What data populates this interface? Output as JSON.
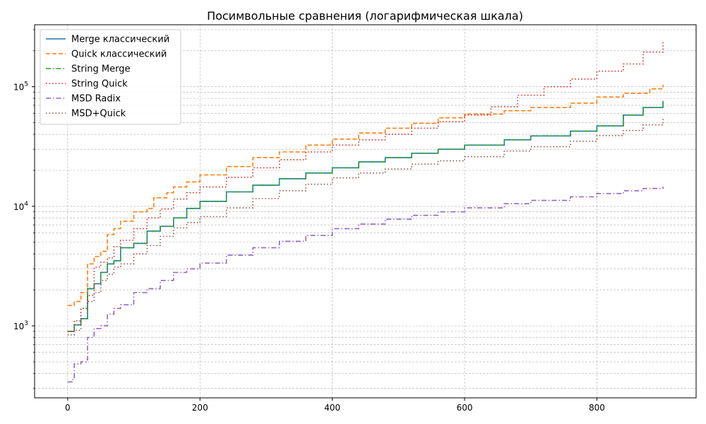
{
  "chart_data": {
    "type": "line",
    "title": "Посимвольные сравнения (логарифмическая шкала)",
    "xlabel": "",
    "ylabel": "",
    "yscale": "log",
    "xlim": [
      -50,
      950
    ],
    "ylim": [
      250,
      330000
    ],
    "xticks": [
      0,
      200,
      400,
      600,
      800
    ],
    "xtick_labels": [
      "0",
      "200",
      "400",
      "600",
      "800"
    ],
    "yticks": [
      1000,
      10000,
      100000
    ],
    "ytick_labels": [
      {
        "base": "10",
        "exp": "3"
      },
      {
        "base": "10",
        "exp": "4"
      },
      {
        "base": "10",
        "exp": "5"
      }
    ],
    "grid": true,
    "legend_position": "upper-left",
    "series": [
      {
        "name": "Merge классический",
        "color": "#1f77b4",
        "dash": "solid",
        "x": [
          0,
          10,
          20,
          30,
          40,
          50,
          60,
          70,
          80,
          100,
          120,
          140,
          160,
          180,
          200,
          240,
          280,
          320,
          360,
          400,
          440,
          480,
          520,
          560,
          600,
          660,
          700,
          760,
          800,
          840,
          870,
          900
        ],
        "y": [
          900,
          1020,
          1150,
          2050,
          2250,
          2800,
          3300,
          3500,
          4500,
          4900,
          6200,
          6800,
          8000,
          9600,
          11000,
          13200,
          15000,
          17000,
          19000,
          21000,
          23500,
          25500,
          27800,
          30000,
          32500,
          36000,
          38800,
          42500,
          47000,
          58000,
          67000,
          76000
        ]
      },
      {
        "name": "Quick классический",
        "color": "#ff7f0e",
        "dash": "dashed",
        "x": [
          0,
          10,
          20,
          30,
          40,
          50,
          60,
          70,
          80,
          100,
          120,
          130,
          150,
          160,
          180,
          200,
          240,
          280,
          320,
          360,
          400,
          440,
          480,
          520,
          560,
          600,
          660,
          700,
          760,
          800,
          840,
          880,
          900
        ],
        "y": [
          1480,
          1600,
          1900,
          3300,
          3800,
          4200,
          5800,
          6500,
          7500,
          9000,
          9600,
          11800,
          13000,
          14500,
          16000,
          18300,
          21500,
          25500,
          28500,
          32500,
          36500,
          41000,
          45000,
          49500,
          55000,
          59000,
          63000,
          67000,
          73000,
          82000,
          88000,
          96000,
          104000
        ]
      },
      {
        "name": "String Merge",
        "color": "#2ca02c",
        "dash": "dashdot",
        "x": [
          0,
          10,
          20,
          30,
          40,
          50,
          60,
          70,
          80,
          100,
          120,
          140,
          160,
          180,
          200,
          240,
          280,
          320,
          360,
          400,
          440,
          480,
          520,
          560,
          600,
          660,
          700,
          760,
          800,
          840,
          870,
          900
        ],
        "y": [
          900,
          1020,
          1150,
          2050,
          2250,
          2800,
          3300,
          3500,
          4500,
          4900,
          6200,
          6800,
          8000,
          9600,
          11000,
          13200,
          15000,
          17000,
          19000,
          21000,
          23500,
          25500,
          27800,
          30000,
          32500,
          36000,
          38800,
          42500,
          47000,
          58000,
          67000,
          76000
        ]
      },
      {
        "name": "String Quick",
        "color": "#d62728",
        "dash": "dotted",
        "x": [
          0,
          10,
          20,
          30,
          40,
          50,
          60,
          70,
          80,
          100,
          120,
          140,
          160,
          180,
          200,
          240,
          280,
          320,
          360,
          400,
          440,
          480,
          520,
          560,
          600,
          640,
          680,
          720,
          760,
          800,
          840,
          870,
          900
        ],
        "y": [
          900,
          1100,
          1400,
          1800,
          3100,
          3400,
          3700,
          4600,
          5200,
          6500,
          8000,
          9500,
          11500,
          13000,
          14500,
          17500,
          21000,
          24500,
          28500,
          32500,
          36000,
          40000,
          45000,
          51000,
          58000,
          68000,
          85000,
          100000,
          116000,
          135000,
          155000,
          195000,
          245000
        ]
      },
      {
        "name": "MSD Radix",
        "color": "#9467bd",
        "dash": "dashdot",
        "x": [
          0,
          8,
          10,
          20,
          28,
          30,
          40,
          50,
          60,
          70,
          80,
          100,
          120,
          140,
          160,
          180,
          200,
          240,
          280,
          320,
          360,
          400,
          440,
          480,
          520,
          560,
          600,
          660,
          700,
          760,
          800,
          840,
          870,
          900
        ],
        "y": [
          340,
          360,
          480,
          500,
          520,
          800,
          950,
          1000,
          1250,
          1400,
          1500,
          1900,
          2050,
          2400,
          2800,
          3000,
          3350,
          3900,
          4500,
          5100,
          5700,
          6500,
          7100,
          7800,
          8400,
          9000,
          9700,
          10500,
          11200,
          12000,
          12800,
          13500,
          14100,
          14600
        ]
      },
      {
        "name": "MSD+Quick",
        "color": "#8c564b",
        "dash": "dotted",
        "x": [
          0,
          10,
          20,
          30,
          40,
          50,
          60,
          70,
          80,
          100,
          120,
          140,
          160,
          180,
          200,
          240,
          280,
          320,
          360,
          400,
          440,
          480,
          520,
          560,
          600,
          660,
          700,
          760,
          800,
          840,
          870,
          900
        ],
        "y": [
          840,
          920,
          1400,
          1600,
          1900,
          2400,
          2700,
          3100,
          3300,
          4000,
          4700,
          5600,
          6600,
          7300,
          8200,
          9700,
          11600,
          13500,
          15300,
          17300,
          19000,
          20500,
          22500,
          24000,
          26000,
          29000,
          31500,
          35000,
          39000,
          43000,
          48000,
          55000
        ]
      }
    ]
  }
}
